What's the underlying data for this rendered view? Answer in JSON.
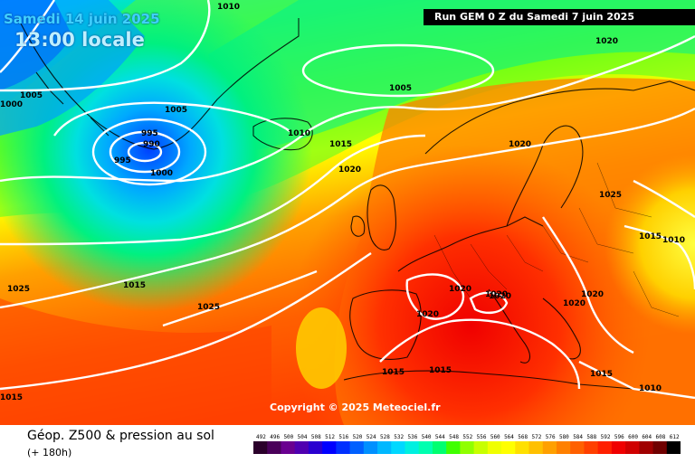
{
  "header": {
    "date": "Samedi 14 juin 2025",
    "time": "13:00 locale",
    "run": "Run GEM 0 Z du Samedi 7 juin 2025"
  },
  "footer": {
    "title": "Géop. Z500 & pression au sol",
    "subtitle": "(+ 180h)",
    "copyright": "Copyright © 2025 Meteociel.fr"
  },
  "isobar_labels": [
    "1010",
    "1005",
    "1005",
    "1000",
    "1005",
    "995",
    "990",
    "995",
    "1000",
    "1010",
    "1015",
    "1020",
    "1020",
    "1020",
    "1025",
    "1015",
    "1025",
    "1015",
    "1010",
    "1020",
    "1020",
    "1020",
    "1020",
    "1020",
    "1015",
    "1015",
    "1015",
    "1010",
    "1025",
    "1015",
    "1020"
  ],
  "legend": {
    "ticks": [
      "492",
      "496",
      "500",
      "504",
      "508",
      "512",
      "516",
      "520",
      "524",
      "528",
      "532",
      "536",
      "540",
      "544",
      "548",
      "552",
      "556",
      "560",
      "564",
      "568",
      "572",
      "576",
      "580",
      "584",
      "588",
      "592",
      "596",
      "600",
      "604",
      "608",
      "612"
    ],
    "colors": [
      "#2b002b",
      "#4a005a",
      "#6a0090",
      "#5000b0",
      "#2a00d0",
      "#0000ff",
      "#0030ff",
      "#0060ff",
      "#0090ff",
      "#00b8ff",
      "#00d8ff",
      "#00f0e0",
      "#00ffb0",
      "#00ff70",
      "#40ff00",
      "#90ff00",
      "#c8ff00",
      "#f0ff00",
      "#ffff00",
      "#ffe000",
      "#ffc000",
      "#ffa000",
      "#ff8000",
      "#ff6000",
      "#ff4000",
      "#ff2000",
      "#f00000",
      "#d00000",
      "#a00000",
      "#700000",
      "#000000"
    ]
  }
}
